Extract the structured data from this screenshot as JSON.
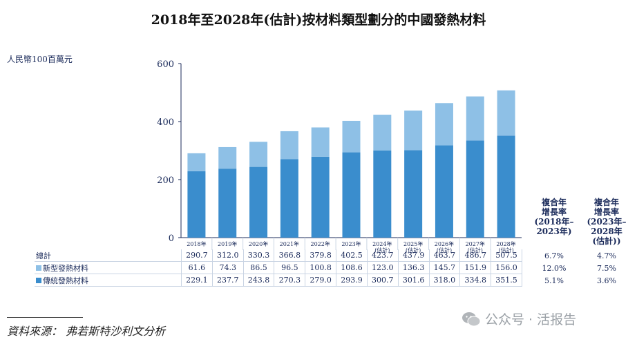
{
  "title": "2018年至2028年(估計)按材料類型劃分的中國發熱材料",
  "unit_label": "人民幣100百萬元",
  "chart_data": {
    "type": "bar",
    "stacked": true,
    "categories": [
      "2018年",
      "2019年",
      "2020年",
      "2021年",
      "2022年",
      "2023年",
      "2024年 (估計)",
      "2025年 (估計)",
      "2026年 (估計)",
      "2027年 (估計)",
      "2028年 (估計)"
    ],
    "category_labels": [
      [
        "2018年"
      ],
      [
        "2019年"
      ],
      [
        "2020年"
      ],
      [
        "2021年"
      ],
      [
        "2022年"
      ],
      [
        "2023年"
      ],
      [
        "2024年",
        "(估計)"
      ],
      [
        "2025年",
        "(估計)"
      ],
      [
        "2026年",
        "(估計)"
      ],
      [
        "2027年",
        "(估計)"
      ],
      [
        "2028年",
        "(估計)"
      ]
    ],
    "series": [
      {
        "name": "傳統發熱材料",
        "color": "#3a8dcd",
        "values": [
          229.1,
          237.7,
          243.8,
          270.3,
          279.0,
          293.9,
          300.7,
          301.6,
          318.0,
          334.8,
          351.5
        ]
      },
      {
        "name": "新型發熱材料",
        "color": "#8ec0e6",
        "values": [
          61.6,
          74.3,
          86.5,
          96.5,
          100.8,
          108.6,
          123.0,
          136.3,
          145.7,
          151.9,
          156.0
        ]
      }
    ],
    "ylim": [
      0,
      600
    ],
    "yticks": [
      "0",
      "200",
      "400",
      "600"
    ],
    "grid": false,
    "table": {
      "rows": [
        {
          "label": "總計",
          "swatch": "",
          "values": [
            "290.7",
            "312.0",
            "330.3",
            "366.8",
            "379.8",
            "402.5",
            "423.7",
            "437.9",
            "463.7",
            "486.7",
            "507.5"
          ]
        },
        {
          "label": "新型發熱材料",
          "swatch": "#8ec0e6",
          "values": [
            "61.6",
            "74.3",
            "86.5",
            "96.5",
            "100.8",
            "108.6",
            "123.0",
            "136.3",
            "145.7",
            "151.9",
            "156.0"
          ]
        },
        {
          "label": "傳統發熱材料",
          "swatch": "#3a8dcd",
          "values": [
            "229.1",
            "237.7",
            "243.8",
            "270.3",
            "279.0",
            "293.9",
            "300.7",
            "301.6",
            "318.0",
            "334.8",
            "351.5"
          ]
        }
      ]
    },
    "cagr": {
      "headers": [
        "複合年\n增長率\n(2018年–\n2023年)",
        "複合年\n增長率\n(2023年–\n2028年\n(估計))"
      ],
      "rows": [
        [
          "6.7%",
          "4.7%"
        ],
        [
          "12.0%",
          "7.5%"
        ],
        [
          "5.1%",
          "3.6%"
        ]
      ]
    }
  },
  "source": "資料來源： 弗若斯特沙利文分析",
  "watermark": "公众号 · 活报告"
}
